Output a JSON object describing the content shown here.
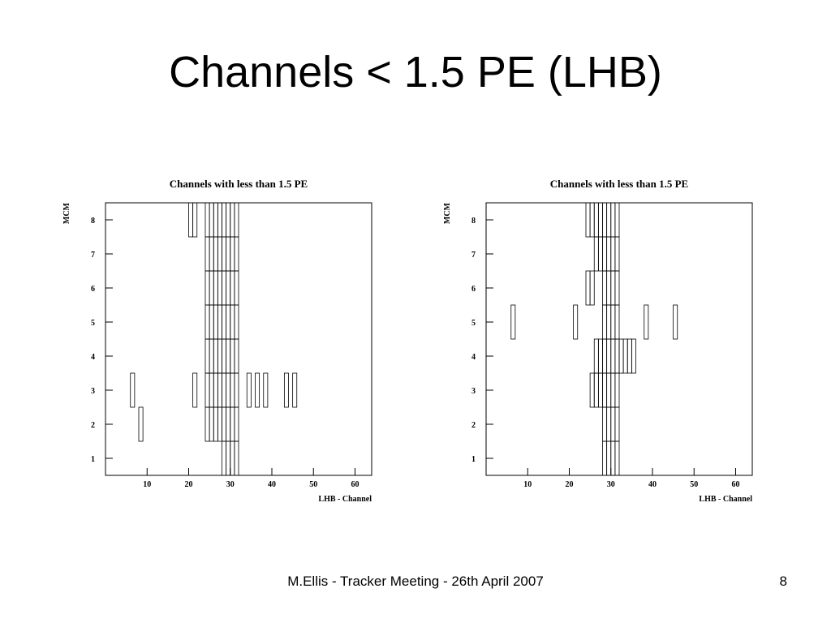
{
  "title": "Channels < 1.5 PE (LHB)",
  "footer": "M.Ellis - Tracker Meeting - 26th April 2007",
  "page_number": "8",
  "chart_data": [
    {
      "type": "box2d",
      "title": "Channels with less than 1.5 PE",
      "x_label": "LHB - Channel",
      "y_label": "MCM",
      "xlim": [
        0,
        64
      ],
      "ylim": [
        0.5,
        8.5
      ],
      "xticks": [
        10,
        20,
        30,
        40,
        50,
        60
      ],
      "yticks": [
        1,
        2,
        3,
        4,
        5,
        6,
        7,
        8
      ],
      "x": [
        28,
        29,
        30,
        31,
        8,
        24,
        25,
        26,
        27,
        28,
        29,
        30,
        31,
        6,
        21,
        24,
        25,
        26,
        27,
        28,
        29,
        30,
        31,
        34,
        36,
        38,
        43,
        45,
        24,
        25,
        26,
        27,
        28,
        29,
        30,
        31,
        24,
        25,
        26,
        27,
        28,
        29,
        30,
        31,
        24,
        25,
        26,
        27,
        28,
        29,
        30,
        31,
        24,
        25,
        26,
        27,
        28,
        29,
        30,
        31,
        20,
        21,
        24,
        25,
        26,
        27,
        28,
        29,
        30,
        31
      ],
      "y": [
        1,
        1,
        1,
        1,
        2,
        2,
        2,
        2,
        2,
        2,
        2,
        2,
        2,
        3,
        3,
        3,
        3,
        3,
        3,
        3,
        3,
        3,
        3,
        3,
        3,
        3,
        3,
        3,
        4,
        4,
        4,
        4,
        4,
        4,
        4,
        4,
        5,
        5,
        5,
        5,
        5,
        5,
        5,
        5,
        6,
        6,
        6,
        6,
        6,
        6,
        6,
        6,
        7,
        7,
        7,
        7,
        7,
        7,
        7,
        7,
        8,
        8,
        8,
        8,
        8,
        8,
        8,
        8,
        8,
        8
      ]
    },
    {
      "type": "box2d",
      "title": "Channels with less than 1.5 PE",
      "x_label": "LHB - Channel",
      "y_label": "MCM",
      "xlim": [
        0,
        64
      ],
      "ylim": [
        0.5,
        8.5
      ],
      "xticks": [
        10,
        20,
        30,
        40,
        50,
        60
      ],
      "yticks": [
        1,
        2,
        3,
        4,
        5,
        6,
        7,
        8
      ],
      "x": [
        28,
        29,
        30,
        31,
        28,
        29,
        30,
        31,
        25,
        26,
        27,
        28,
        29,
        30,
        31,
        26,
        27,
        28,
        29,
        30,
        31,
        32,
        33,
        34,
        35,
        6,
        21,
        28,
        29,
        30,
        31,
        38,
        45,
        24,
        25,
        28,
        29,
        30,
        31,
        26,
        27,
        28,
        29,
        30,
        31,
        24,
        25,
        26,
        27,
        28,
        29,
        30,
        31
      ],
      "y": [
        1,
        1,
        1,
        1,
        2,
        2,
        2,
        2,
        3,
        3,
        3,
        3,
        3,
        3,
        3,
        4,
        4,
        4,
        4,
        4,
        4,
        4,
        4,
        4,
        4,
        5,
        5,
        5,
        5,
        5,
        5,
        5,
        5,
        6,
        6,
        6,
        6,
        6,
        6,
        7,
        7,
        7,
        7,
        7,
        7,
        8,
        8,
        8,
        8,
        8,
        8,
        8,
        8
      ]
    }
  ]
}
